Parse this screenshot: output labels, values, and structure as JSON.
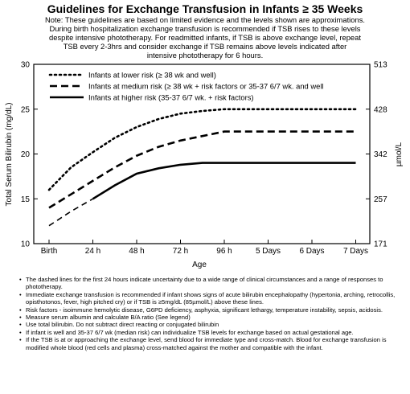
{
  "header": {
    "title": "Guidelines for Exchange Transfusion in Infants ≥ 35 Weeks",
    "note_lines": [
      "Note: These guidelines are based on limited evidence and the levels shown are approximations.",
      "During birth hospitalization exchange transfusion is recommended if TSB rises to these levels",
      "despite intensive phototherapy. For readmitted infants, if TSB is above exchange level, repeat",
      "TSB every 2-3hrs and consider exchange if TSB remains above levels indicated after",
      "intensive phototherapy for 6 hours."
    ]
  },
  "chart_data": {
    "type": "line",
    "categories": [
      "Birth",
      "24 h",
      "48 h",
      "72 h",
      "96 h",
      "5 Days",
      "6 Days",
      "7 Days"
    ],
    "x": [
      0,
      1,
      2,
      3,
      4,
      5,
      6,
      7
    ],
    "xlabel": "Age",
    "ylabel": "Total Serum Bilirubin (mg/dL)",
    "ylabel_right": "µmol/L",
    "ylim": [
      10,
      30
    ],
    "yticks": [
      10,
      15,
      20,
      25,
      30
    ],
    "yticks_right": [
      {
        "value": 171,
        "at": 10
      },
      {
        "value": 257,
        "at": 15
      },
      {
        "value": 342,
        "at": 20
      },
      {
        "value": 428,
        "at": 25
      },
      {
        "value": 513,
        "at": 30
      }
    ],
    "grid": false,
    "legend_position": "top-left",
    "series": [
      {
        "name": "Infants at lower risk (≥ 38 wk and well)",
        "style": "dotted",
        "x": [
          0,
          0.5,
          1,
          1.5,
          2,
          2.5,
          3,
          3.5,
          4,
          5,
          6,
          7
        ],
        "values": [
          16,
          18.5,
          20.2,
          21.8,
          23.0,
          23.9,
          24.5,
          24.8,
          25,
          25,
          25,
          25
        ],
        "uncertain_until": 1
      },
      {
        "name": "Infants at medium risk (≥ 38 wk + risk factors or 35-37 6/7 wk. and well",
        "style": "dashed",
        "x": [
          0,
          0.5,
          1,
          1.5,
          2,
          2.5,
          3,
          3.5,
          4,
          5,
          6,
          7
        ],
        "values": [
          14,
          15.5,
          17,
          18.5,
          19.8,
          20.8,
          21.5,
          22,
          22.5,
          22.5,
          22.5,
          22.5
        ],
        "uncertain_until": 1
      },
      {
        "name": "Infants at higher risk (35-37 6/7 wk. + risk factors)",
        "style": "solid",
        "x": [
          0,
          0.5,
          1,
          1.5,
          2,
          2.5,
          3,
          3.5,
          4,
          5,
          6,
          7
        ],
        "values": [
          12,
          13.6,
          15,
          16.5,
          17.8,
          18.4,
          18.8,
          19,
          19,
          19,
          19,
          19
        ],
        "uncertain_until": 1
      }
    ]
  },
  "bullets": [
    "The dashed lines for the first 24 hours indicate uncertainty due to a wide range of clinical circumstances and a range of responses to phototherapy.",
    "Immediate exchange transfusion is recommended if infant shows signs of acute bilirubin encephalopathy (hypertonia, arching, retrocollis, opisthotonos, fever, high pitched cry) or if TSB is ≥5mg/dL (85µmol/L) above these lines.",
    "Risk factors - isoimmune hemolytic disease, G6PD deficiency, asphyxia, significant lethargy, temperature instability, sepsis, acidosis.",
    "Measure serum albumin and calculate B/A ratio (See legend)",
    "Use total bilirubin. Do not subtract direct reacting or conjugated bilirubin",
    "If infant is well and 35-37 6/7 wk (median risk) can individualize TSB levels for exchange based on actual gestational age.",
    "If the TSB is at or approaching the exchange level, send blood for immediate type and cross-match. Blood for exchange transfusion is modified whole blood (red cells and plasma) cross-matched against the mother and compatible with the infant."
  ]
}
